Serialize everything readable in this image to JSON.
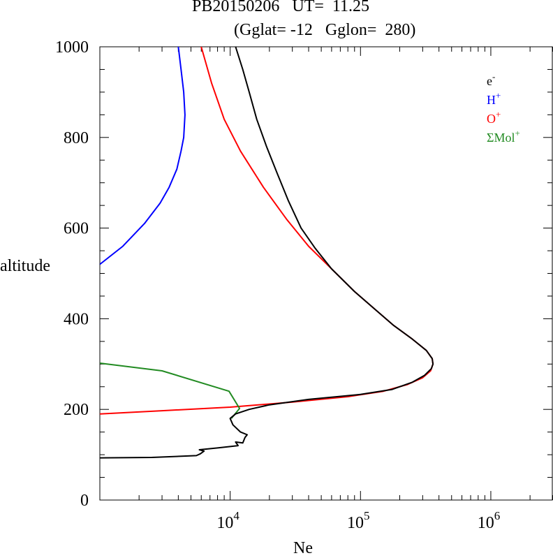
{
  "chart_data": {
    "type": "line",
    "title_line1": "PB20150206   UT=  11.25",
    "title_line2": "(Gglat= -12   Gglon=  280)",
    "xlabel": "Ne",
    "ylabel": "altitude",
    "xscale": "log",
    "xlim": [
      1000,
      3000000
    ],
    "ylim": [
      0,
      1000
    ],
    "y_ticks": [
      0,
      200,
      400,
      600,
      800,
      1000
    ],
    "y_tick_labels": [
      "0",
      "200",
      "400",
      "600",
      "800",
      "1000"
    ],
    "x_ticks": [
      10000,
      100000,
      1000000
    ],
    "x_tick_labels": [
      {
        "base": "10",
        "exp": "4"
      },
      {
        "base": "10",
        "exp": "5"
      },
      {
        "base": "10",
        "exp": "6"
      }
    ],
    "legend_position": "top-right",
    "series": [
      {
        "name": "e",
        "sup": "-",
        "color": "#000000",
        "points": [
          [
            1000,
            93
          ],
          [
            2500,
            94
          ],
          [
            5500,
            98
          ],
          [
            5900,
            102
          ],
          [
            6300,
            108
          ],
          [
            5800,
            111
          ],
          [
            8000,
            115
          ],
          [
            11500,
            120
          ],
          [
            11000,
            128
          ],
          [
            12500,
            126
          ],
          [
            13000,
            138
          ],
          [
            13500,
            144
          ],
          [
            12000,
            150
          ],
          [
            10500,
            166
          ],
          [
            10000,
            180
          ],
          [
            11000,
            190
          ],
          [
            14000,
            200
          ],
          [
            20000,
            210
          ],
          [
            40000,
            222
          ],
          [
            100000,
            233
          ],
          [
            175000,
            244
          ],
          [
            250000,
            260
          ],
          [
            310000,
            275
          ],
          [
            350000,
            290
          ],
          [
            360000,
            300
          ],
          [
            355000,
            312
          ],
          [
            320000,
            330
          ],
          [
            250000,
            355
          ],
          [
            180000,
            385
          ],
          [
            130000,
            420
          ],
          [
            90000,
            460
          ],
          [
            60000,
            510
          ],
          [
            45000,
            555
          ],
          [
            35000,
            600
          ],
          [
            28000,
            660
          ],
          [
            23000,
            720
          ],
          [
            19000,
            780
          ],
          [
            16000,
            840
          ],
          [
            14000,
            900
          ],
          [
            12500,
            950
          ],
          [
            11000,
            1000
          ]
        ]
      },
      {
        "name": "H",
        "sup": "+",
        "color": "#0000ff",
        "points": [
          [
            1000,
            520
          ],
          [
            1500,
            560
          ],
          [
            2200,
            610
          ],
          [
            2900,
            655
          ],
          [
            3400,
            690
          ],
          [
            3900,
            730
          ],
          [
            4200,
            770
          ],
          [
            4400,
            800
          ],
          [
            4500,
            850
          ],
          [
            4400,
            900
          ],
          [
            4200,
            950
          ],
          [
            4000,
            1000
          ]
        ]
      },
      {
        "name": "O",
        "sup": "+",
        "color": "#ff0000",
        "points": [
          [
            1000,
            190
          ],
          [
            3000,
            197
          ],
          [
            10000,
            205
          ],
          [
            30000,
            216
          ],
          [
            80000,
            228
          ],
          [
            150000,
            240
          ],
          [
            230000,
            255
          ],
          [
            300000,
            270
          ],
          [
            345000,
            285
          ],
          [
            360000,
            300
          ],
          [
            355000,
            312
          ],
          [
            320000,
            330
          ],
          [
            250000,
            355
          ],
          [
            180000,
            385
          ],
          [
            130000,
            420
          ],
          [
            90000,
            460
          ],
          [
            60000,
            510
          ],
          [
            40000,
            560
          ],
          [
            27000,
            620
          ],
          [
            18000,
            690
          ],
          [
            12000,
            770
          ],
          [
            9000,
            840
          ],
          [
            7200,
            920
          ],
          [
            6000,
            1000
          ]
        ]
      },
      {
        "name": "ΣMol",
        "sup": "+",
        "color": "#228b22",
        "points": [
          [
            1000,
            302
          ],
          [
            3000,
            285
          ],
          [
            9800,
            240
          ],
          [
            11800,
            202
          ],
          [
            10200,
            180
          ]
        ]
      }
    ]
  }
}
